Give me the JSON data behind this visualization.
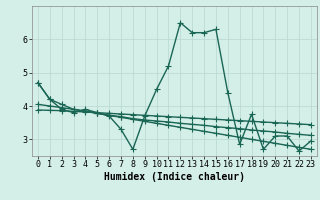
{
  "xlabel": "Humidex (Indice chaleur)",
  "background_color": "#d4eee8",
  "grid_color": "#b8d8d0",
  "line_color": "#1a6655",
  "xlim": [
    -0.5,
    23.5
  ],
  "ylim": [
    2.5,
    7.0
  ],
  "yticks": [
    3,
    4,
    5,
    6
  ],
  "xticks": [
    0,
    1,
    2,
    3,
    4,
    5,
    6,
    7,
    8,
    9,
    10,
    11,
    12,
    13,
    14,
    15,
    16,
    17,
    18,
    19,
    20,
    21,
    22,
    23
  ],
  "series": [
    [
      4.7,
      4.2,
      3.9,
      3.8,
      3.9,
      3.8,
      3.7,
      3.3,
      2.7,
      3.7,
      4.5,
      5.2,
      6.5,
      6.2,
      6.2,
      6.3,
      4.4,
      2.85,
      3.75,
      2.7,
      3.1,
      3.1,
      2.65,
      2.95
    ],
    [
      4.7,
      4.2,
      4.05,
      3.9,
      3.85,
      3.78,
      3.72,
      3.68,
      3.62,
      3.58,
      3.55,
      3.52,
      3.48,
      3.45,
      3.42,
      3.38,
      3.35,
      3.32,
      3.28,
      3.25,
      3.22,
      3.18,
      3.15,
      3.12
    ],
    [
      3.88,
      3.87,
      3.86,
      3.84,
      3.82,
      3.8,
      3.78,
      3.76,
      3.74,
      3.72,
      3.7,
      3.68,
      3.66,
      3.64,
      3.62,
      3.6,
      3.58,
      3.56,
      3.54,
      3.52,
      3.5,
      3.48,
      3.46,
      3.44
    ],
    [
      4.05,
      4.0,
      3.95,
      3.9,
      3.84,
      3.78,
      3.72,
      3.66,
      3.6,
      3.54,
      3.48,
      3.42,
      3.36,
      3.3,
      3.24,
      3.18,
      3.12,
      3.06,
      3.0,
      2.94,
      2.88,
      2.82,
      2.76,
      2.7
    ]
  ],
  "marker": "+",
  "markersize": 4,
  "linewidth": 1.0,
  "xlabel_fontsize": 7,
  "tick_fontsize": 6
}
